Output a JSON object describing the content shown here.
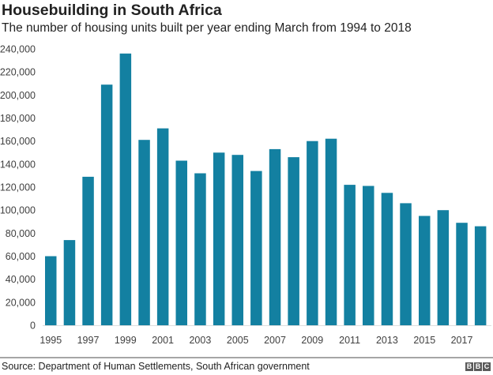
{
  "header": {
    "title": "Housebuilding in South Africa",
    "subtitle": "The number of housing units built per year ending March from 1994 to 2018"
  },
  "footer": {
    "source": "Source: Department of Human Settlements, South African government",
    "logo_text": "BBC",
    "logo_letters": [
      "B",
      "B",
      "C"
    ]
  },
  "colors": {
    "bar": "#1380a1",
    "text": "#222222",
    "axis": "#404040",
    "divider": "#a6a6a6"
  },
  "chart_data": {
    "type": "bar",
    "title": "Housebuilding in South Africa",
    "subtitle": "The number of housing units built per year ending March from 1994 to 2018",
    "xlabel": "",
    "ylabel": "",
    "categories": [
      "1995",
      "1996",
      "1997",
      "1998",
      "1999",
      "2000",
      "2001",
      "2002",
      "2003",
      "2004",
      "2005",
      "2006",
      "2007",
      "2008",
      "2009",
      "2010",
      "2011",
      "2012",
      "2013",
      "2014",
      "2015",
      "2016",
      "2017",
      "2018"
    ],
    "values": [
      60000,
      74000,
      129000,
      209000,
      236000,
      161000,
      171000,
      143000,
      132000,
      150000,
      148000,
      134000,
      153000,
      146000,
      160000,
      162000,
      122000,
      121000,
      115000,
      106000,
      95000,
      100000,
      89000,
      86000
    ],
    "x_tick_labels": [
      "1995",
      "1997",
      "1999",
      "2001",
      "2003",
      "2005",
      "2007",
      "2009",
      "2011",
      "2013",
      "2015",
      "2017"
    ],
    "y_tick_labels": [
      "0",
      "20,000",
      "40,000",
      "60,000",
      "80,000",
      "100,000",
      "120,000",
      "140,000",
      "160,000",
      "180,000",
      "200,000",
      "220,000",
      "240,000"
    ],
    "y_ticks": [
      0,
      20000,
      40000,
      60000,
      80000,
      100000,
      120000,
      140000,
      160000,
      180000,
      200000,
      220000,
      240000
    ],
    "ylim": [
      0,
      240000
    ],
    "grid": false,
    "legend": "none",
    "source": "Source: Department of Human Settlements, South African government"
  }
}
